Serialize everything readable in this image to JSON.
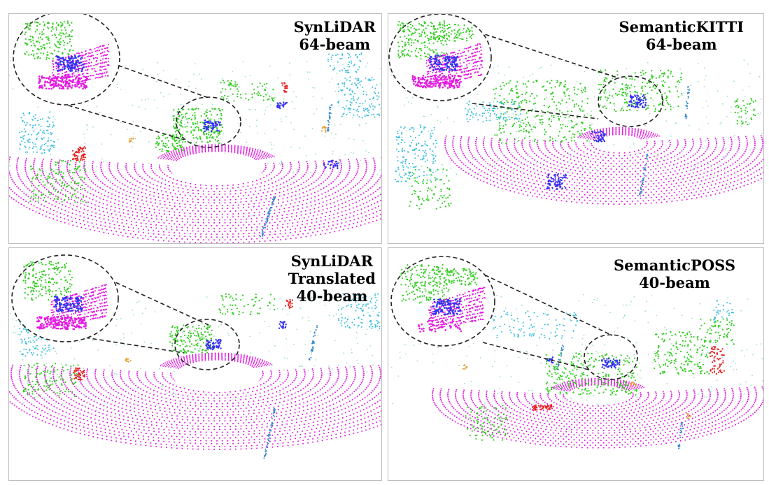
{
  "colors": {
    "road": "#e21be0",
    "vegetation": "#33cc22",
    "car": "#3333ee",
    "building": "#33bbdd",
    "terrain": "#99e0c8",
    "person": "#e82020",
    "pole": "#3388cc",
    "bike": "#e8a030",
    "background": "#ffffff"
  },
  "panels": [
    {
      "id": "synlidar-64",
      "title": "SynLiDAR",
      "subtitle": "64-beam"
    },
    {
      "id": "semantickitti-64",
      "title": "SemanticKITTI",
      "subtitle": "64-beam"
    },
    {
      "id": "synlidar-translated-40",
      "title": "SynLiDAR",
      "subtitle": "Translated",
      "subtitle2": "40-beam"
    },
    {
      "id": "semanticposs-40",
      "title": "SemanticPOSS",
      "subtitle": "40-beam"
    }
  ]
}
